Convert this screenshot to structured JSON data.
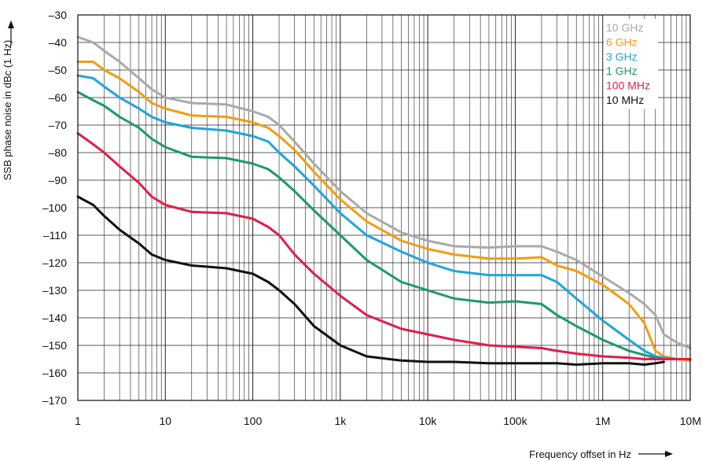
{
  "chart_data": {
    "type": "line",
    "x_scale": "log",
    "xlim": [
      1,
      10000000
    ],
    "ylim": [
      -170,
      -30
    ],
    "grid": true,
    "legend_position": "top-right",
    "xlabel": "Frequency offset in Hz",
    "ylabel": "SSB phase noise in dBc (1 Hz)",
    "x_ticks": [
      {
        "value": 1,
        "label": "1"
      },
      {
        "value": 10,
        "label": "10"
      },
      {
        "value": 100,
        "label": "100"
      },
      {
        "value": 1000,
        "label": "1k"
      },
      {
        "value": 10000,
        "label": "10k"
      },
      {
        "value": 100000,
        "label": "100k"
      },
      {
        "value": 1000000,
        "label": "1M"
      },
      {
        "value": 10000000,
        "label": "10M"
      }
    ],
    "y_ticks": [
      {
        "value": -30,
        "label": "–30"
      },
      {
        "value": -40,
        "label": "–40"
      },
      {
        "value": -50,
        "label": "–50"
      },
      {
        "value": -60,
        "label": "–60"
      },
      {
        "value": -70,
        "label": "–70"
      },
      {
        "value": -80,
        "label": "–80"
      },
      {
        "value": -90,
        "label": "–90"
      },
      {
        "value": -100,
        "label": "–100"
      },
      {
        "value": -110,
        "label": "–110"
      },
      {
        "value": -120,
        "label": "–120"
      },
      {
        "value": -130,
        "label": "–130"
      },
      {
        "value": -140,
        "label": "–140"
      },
      {
        "value": -150,
        "label": "–150"
      },
      {
        "value": -160,
        "label": "–160"
      },
      {
        "value": -170,
        "label": "–170"
      }
    ],
    "series": [
      {
        "name": "10 GHz",
        "color": "#a9a9a9",
        "x": [
          1,
          1.5,
          2,
          3,
          5,
          7,
          10,
          20,
          50,
          100,
          150,
          200,
          300,
          500,
          1000,
          2000,
          5000,
          10000,
          20000,
          50000,
          100000,
          200000,
          300000,
          500000,
          1000000,
          2000000,
          3000000,
          4000000,
          5000000,
          7000000,
          10000000
        ],
        "y": [
          -38,
          -40,
          -43,
          -47,
          -53,
          -57,
          -60,
          -62,
          -62.5,
          -65,
          -67,
          -70,
          -76,
          -84,
          -94,
          -102,
          -109,
          -112,
          -114,
          -114.5,
          -114,
          -114,
          -116,
          -119,
          -125,
          -131,
          -135,
          -139,
          -146,
          -149,
          -151
        ]
      },
      {
        "name": "6 GHz",
        "color": "#f39c12",
        "x": [
          1,
          1.5,
          2,
          3,
          5,
          7,
          10,
          20,
          50,
          100,
          150,
          200,
          300,
          500,
          1000,
          2000,
          5000,
          10000,
          20000,
          50000,
          100000,
          200000,
          300000,
          500000,
          1000000,
          2000000,
          3000000,
          4000000,
          5000000,
          7000000,
          10000000
        ],
        "y": [
          -47,
          -47,
          -50,
          -53,
          -58,
          -62,
          -64,
          -66.5,
          -67,
          -69,
          -71,
          -74,
          -79,
          -87,
          -97,
          -105,
          -112,
          -115,
          -117,
          -118.5,
          -118.5,
          -118,
          -121,
          -123,
          -128,
          -135,
          -142,
          -152,
          -154,
          -155,
          -155.5
        ]
      },
      {
        "name": "3 GHz",
        "color": "#1ea5dc",
        "x": [
          1,
          1.5,
          2,
          3,
          5,
          7,
          10,
          20,
          50,
          100,
          150,
          200,
          300,
          500,
          1000,
          2000,
          5000,
          10000,
          20000,
          50000,
          100000,
          200000,
          300000,
          500000,
          1000000,
          2000000,
          3000000,
          4000000,
          5000000,
          7000000,
          10000000
        ],
        "y": [
          -52,
          -53,
          -56,
          -60,
          -64,
          -67,
          -69,
          -71,
          -72,
          -74,
          -76,
          -80,
          -85,
          -92,
          -102,
          -110,
          -116,
          -120,
          -123,
          -124.5,
          -124.5,
          -124.5,
          -127,
          -133,
          -141,
          -148,
          -152,
          -154,
          -154.5,
          -155,
          -155
        ]
      },
      {
        "name": "1 GHz",
        "color": "#1a9a6c",
        "x": [
          1,
          1.5,
          2,
          3,
          5,
          7,
          10,
          20,
          50,
          100,
          150,
          200,
          300,
          500,
          1000,
          2000,
          5000,
          10000,
          20000,
          50000,
          100000,
          200000,
          300000,
          500000,
          1000000,
          2000000,
          3000000,
          4000000,
          5000000,
          7000000,
          10000000
        ],
        "y": [
          -58,
          -61,
          -63,
          -67,
          -71,
          -75,
          -78,
          -81.5,
          -82,
          -84,
          -86,
          -89,
          -94,
          -101,
          -110,
          -119,
          -127,
          -130,
          -133,
          -134.5,
          -134,
          -135,
          -139,
          -143,
          -148,
          -152,
          -153.5,
          -154.5,
          -155,
          -155,
          -155
        ]
      },
      {
        "name": "100 MHz",
        "color": "#e01e4a",
        "x": [
          1,
          1.5,
          2,
          3,
          5,
          7,
          10,
          20,
          50,
          100,
          150,
          200,
          300,
          500,
          1000,
          2000,
          5000,
          10000,
          20000,
          50000,
          100000,
          200000,
          300000,
          500000,
          1000000,
          2000000,
          3000000,
          4000000,
          5000000,
          7000000,
          10000000
        ],
        "y": [
          -73,
          -77,
          -80,
          -85,
          -91,
          -96,
          -99,
          -101.5,
          -102,
          -104,
          -107,
          -110,
          -117,
          -124,
          -132,
          -139,
          -144,
          -146,
          -148,
          -150,
          -150.5,
          -151,
          -152,
          -153,
          -154,
          -154.5,
          -155,
          -155,
          -155,
          -155,
          -155
        ]
      },
      {
        "name": "10 MHz",
        "color": "#111111",
        "x": [
          1,
          1.5,
          2,
          3,
          5,
          7,
          10,
          20,
          50,
          100,
          150,
          200,
          300,
          500,
          1000,
          2000,
          5000,
          10000,
          20000,
          50000,
          100000,
          200000,
          300000,
          500000,
          1000000,
          2000000,
          3000000,
          4000000,
          5000000
        ],
        "y": [
          -96,
          -99,
          -103,
          -108,
          -113,
          -117,
          -119,
          -121,
          -122,
          -124,
          -127,
          -130,
          -135,
          -143,
          -150,
          -154,
          -155.5,
          -156,
          -156,
          -156.5,
          -156.5,
          -156.5,
          -156.5,
          -157,
          -156.5,
          -156.5,
          -157,
          -156.5,
          -156
        ]
      }
    ]
  }
}
